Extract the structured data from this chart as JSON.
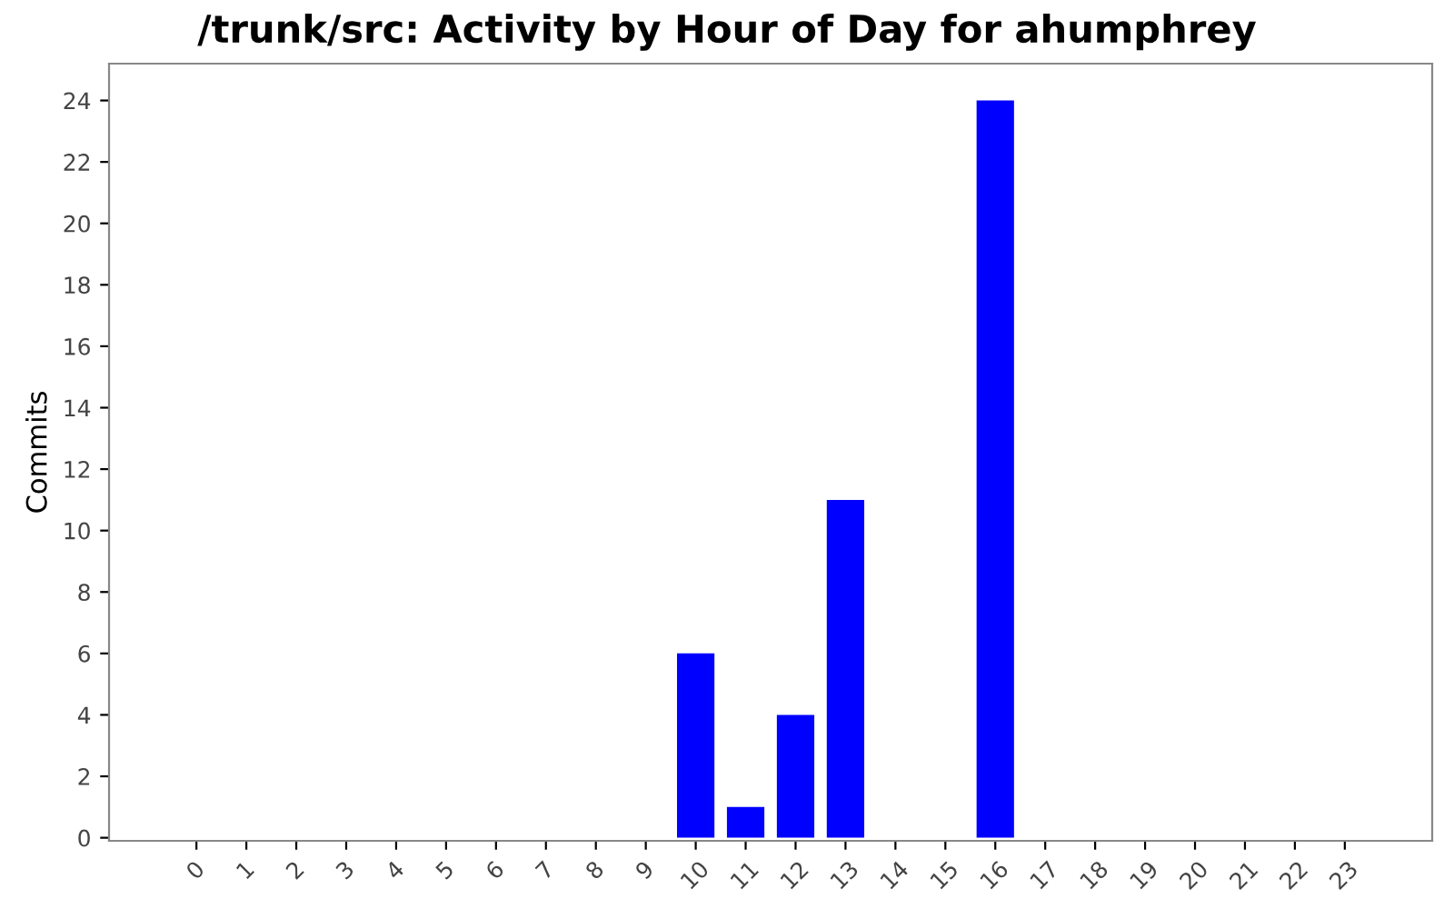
{
  "chart_data": {
    "type": "bar",
    "title": "/trunk/src: Activity by Hour of Day for ahumphrey",
    "ylabel": "Commits",
    "categories": [
      "0",
      "1",
      "2",
      "3",
      "4",
      "5",
      "6",
      "7",
      "8",
      "9",
      "10",
      "11",
      "12",
      "13",
      "14",
      "15",
      "16",
      "17",
      "18",
      "19",
      "20",
      "21",
      "22",
      "23"
    ],
    "values": [
      0,
      0,
      0,
      0,
      0,
      0,
      0,
      0,
      0,
      0,
      6,
      1,
      4,
      11,
      0,
      0,
      24,
      0,
      0,
      0,
      0,
      0,
      0,
      0
    ],
    "color": "#0000ff",
    "ylim": [
      -0.1,
      25.2
    ],
    "yticks": [
      0,
      2,
      4,
      6,
      8,
      10,
      12,
      14,
      16,
      18,
      20,
      22,
      24
    ],
    "grid": false,
    "legend": false
  }
}
